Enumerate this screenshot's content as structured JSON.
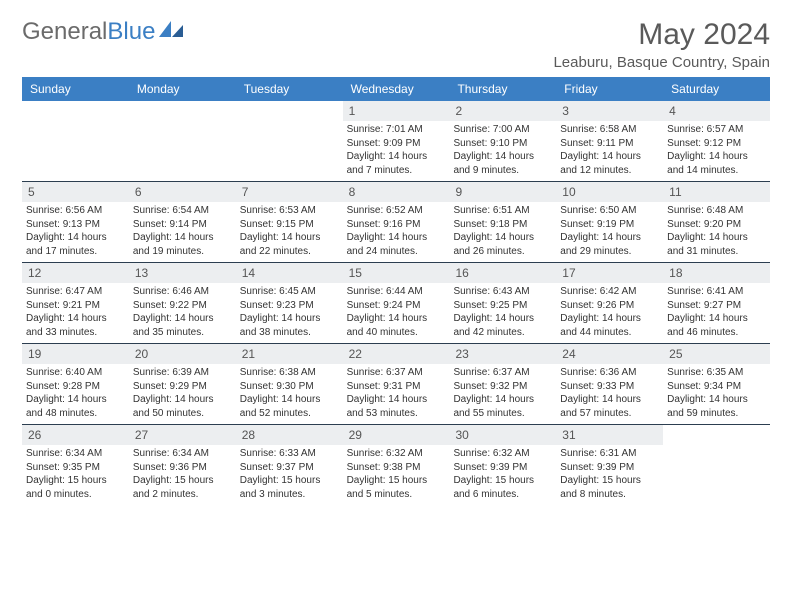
{
  "logo": {
    "text1": "General",
    "text2": "Blue"
  },
  "title": "May 2024",
  "location": "Leaburu, Basque Country, Spain",
  "dayheads": [
    "Sunday",
    "Monday",
    "Tuesday",
    "Wednesday",
    "Thursday",
    "Friday",
    "Saturday"
  ],
  "colors": {
    "header_bg": "#3b7fc4",
    "daynum_bg": "#eceef0",
    "week_border": "#2c3e50",
    "text": "#333333",
    "title_text": "#5a5a5a"
  },
  "weeks": [
    [
      {
        "blank": true
      },
      {
        "blank": true
      },
      {
        "blank": true
      },
      {
        "n": "1",
        "sr": "7:01 AM",
        "ss": "9:09 PM",
        "dl": "14 hours and 7 minutes."
      },
      {
        "n": "2",
        "sr": "7:00 AM",
        "ss": "9:10 PM",
        "dl": "14 hours and 9 minutes."
      },
      {
        "n": "3",
        "sr": "6:58 AM",
        "ss": "9:11 PM",
        "dl": "14 hours and 12 minutes."
      },
      {
        "n": "4",
        "sr": "6:57 AM",
        "ss": "9:12 PM",
        "dl": "14 hours and 14 minutes."
      }
    ],
    [
      {
        "n": "5",
        "sr": "6:56 AM",
        "ss": "9:13 PM",
        "dl": "14 hours and 17 minutes."
      },
      {
        "n": "6",
        "sr": "6:54 AM",
        "ss": "9:14 PM",
        "dl": "14 hours and 19 minutes."
      },
      {
        "n": "7",
        "sr": "6:53 AM",
        "ss": "9:15 PM",
        "dl": "14 hours and 22 minutes."
      },
      {
        "n": "8",
        "sr": "6:52 AM",
        "ss": "9:16 PM",
        "dl": "14 hours and 24 minutes."
      },
      {
        "n": "9",
        "sr": "6:51 AM",
        "ss": "9:18 PM",
        "dl": "14 hours and 26 minutes."
      },
      {
        "n": "10",
        "sr": "6:50 AM",
        "ss": "9:19 PM",
        "dl": "14 hours and 29 minutes."
      },
      {
        "n": "11",
        "sr": "6:48 AM",
        "ss": "9:20 PM",
        "dl": "14 hours and 31 minutes."
      }
    ],
    [
      {
        "n": "12",
        "sr": "6:47 AM",
        "ss": "9:21 PM",
        "dl": "14 hours and 33 minutes."
      },
      {
        "n": "13",
        "sr": "6:46 AM",
        "ss": "9:22 PM",
        "dl": "14 hours and 35 minutes."
      },
      {
        "n": "14",
        "sr": "6:45 AM",
        "ss": "9:23 PM",
        "dl": "14 hours and 38 minutes."
      },
      {
        "n": "15",
        "sr": "6:44 AM",
        "ss": "9:24 PM",
        "dl": "14 hours and 40 minutes."
      },
      {
        "n": "16",
        "sr": "6:43 AM",
        "ss": "9:25 PM",
        "dl": "14 hours and 42 minutes."
      },
      {
        "n": "17",
        "sr": "6:42 AM",
        "ss": "9:26 PM",
        "dl": "14 hours and 44 minutes."
      },
      {
        "n": "18",
        "sr": "6:41 AM",
        "ss": "9:27 PM",
        "dl": "14 hours and 46 minutes."
      }
    ],
    [
      {
        "n": "19",
        "sr": "6:40 AM",
        "ss": "9:28 PM",
        "dl": "14 hours and 48 minutes."
      },
      {
        "n": "20",
        "sr": "6:39 AM",
        "ss": "9:29 PM",
        "dl": "14 hours and 50 minutes."
      },
      {
        "n": "21",
        "sr": "6:38 AM",
        "ss": "9:30 PM",
        "dl": "14 hours and 52 minutes."
      },
      {
        "n": "22",
        "sr": "6:37 AM",
        "ss": "9:31 PM",
        "dl": "14 hours and 53 minutes."
      },
      {
        "n": "23",
        "sr": "6:37 AM",
        "ss": "9:32 PM",
        "dl": "14 hours and 55 minutes."
      },
      {
        "n": "24",
        "sr": "6:36 AM",
        "ss": "9:33 PM",
        "dl": "14 hours and 57 minutes."
      },
      {
        "n": "25",
        "sr": "6:35 AM",
        "ss": "9:34 PM",
        "dl": "14 hours and 59 minutes."
      }
    ],
    [
      {
        "n": "26",
        "sr": "6:34 AM",
        "ss": "9:35 PM",
        "dl": "15 hours and 0 minutes."
      },
      {
        "n": "27",
        "sr": "6:34 AM",
        "ss": "9:36 PM",
        "dl": "15 hours and 2 minutes."
      },
      {
        "n": "28",
        "sr": "6:33 AM",
        "ss": "9:37 PM",
        "dl": "15 hours and 3 minutes."
      },
      {
        "n": "29",
        "sr": "6:32 AM",
        "ss": "9:38 PM",
        "dl": "15 hours and 5 minutes."
      },
      {
        "n": "30",
        "sr": "6:32 AM",
        "ss": "9:39 PM",
        "dl": "15 hours and 6 minutes."
      },
      {
        "n": "31",
        "sr": "6:31 AM",
        "ss": "9:39 PM",
        "dl": "15 hours and 8 minutes."
      },
      {
        "blank": true
      }
    ]
  ]
}
